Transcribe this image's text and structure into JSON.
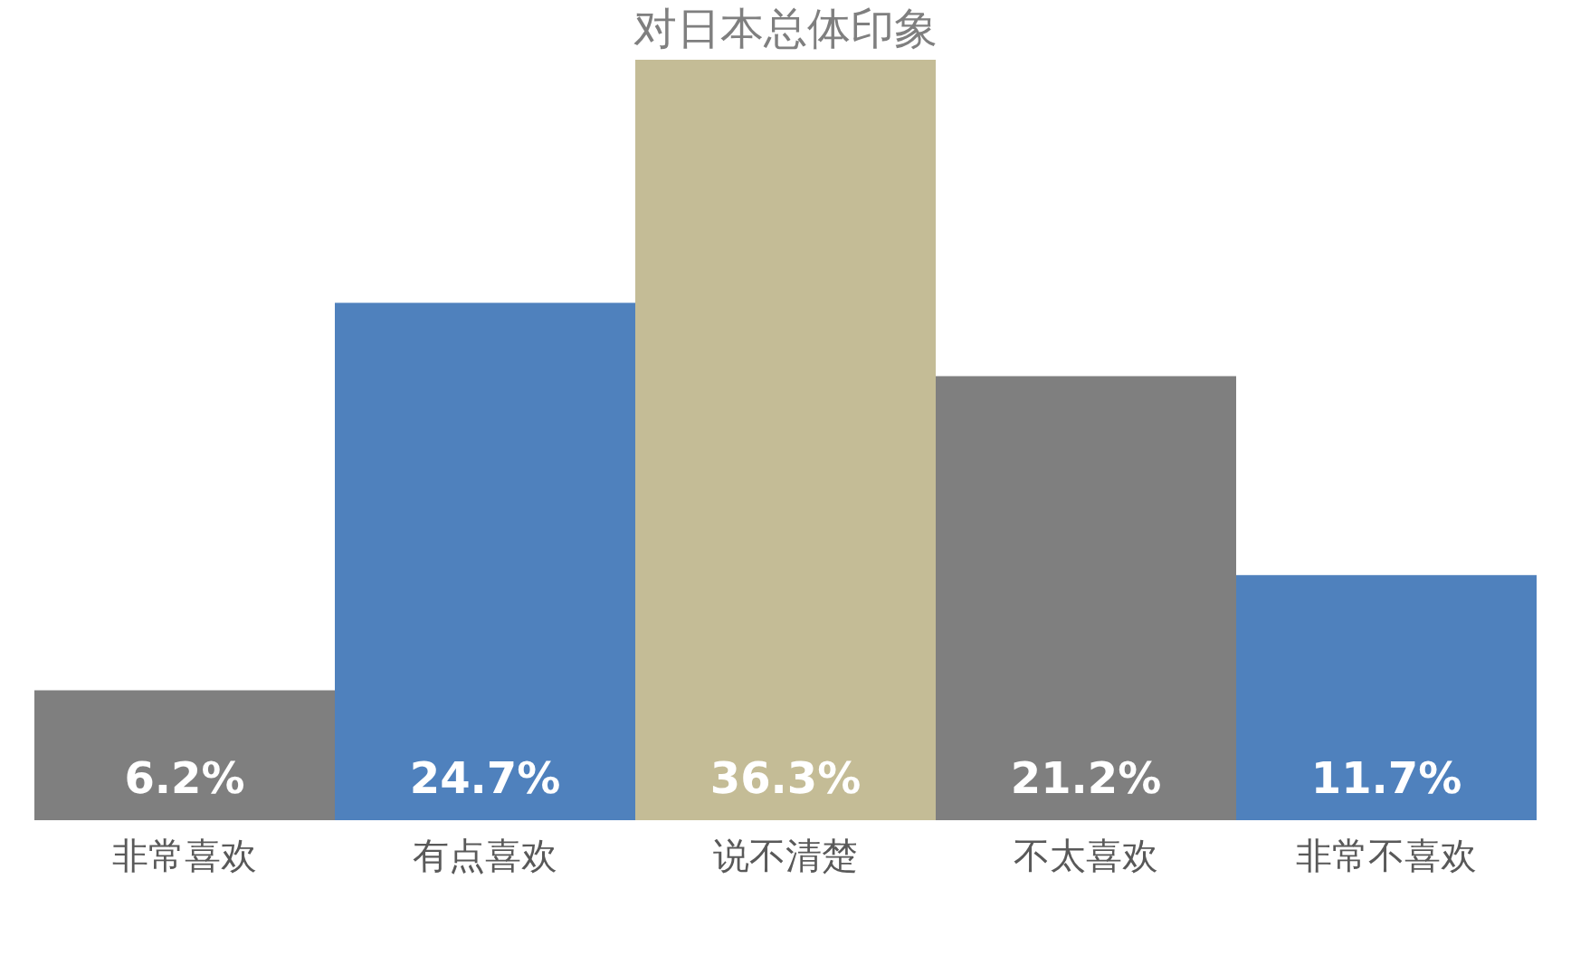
{
  "chart_data": {
    "type": "bar",
    "title": "对日本总体印象",
    "categories": [
      "非常喜欢",
      "有点喜欢",
      "说不清楚",
      "不太喜欢",
      "非常不喜欢"
    ],
    "values": [
      6.2,
      24.7,
      36.3,
      21.2,
      11.7
    ],
    "value_labels": [
      "6.2%",
      "24.7%",
      "36.3%",
      "21.2%",
      "11.7%"
    ],
    "colors": [
      "#7f7f7f",
      "#4f81bd",
      "#c4bc96",
      "#7f7f7f",
      "#4f81bd"
    ],
    "grid": false
  }
}
